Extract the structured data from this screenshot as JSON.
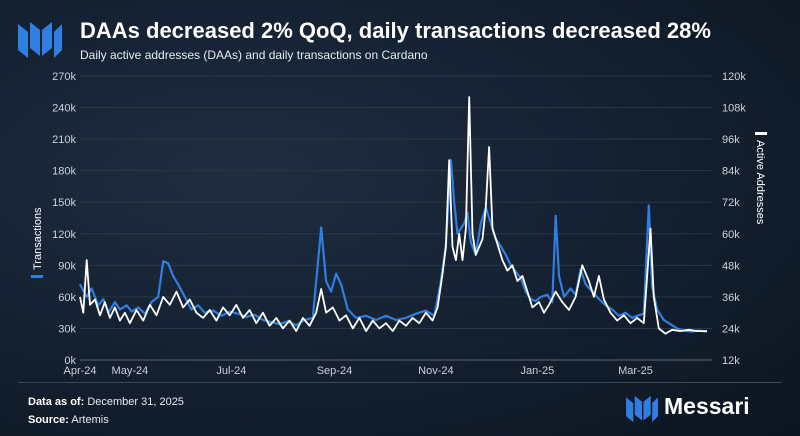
{
  "header": {
    "title": "DAAs decreased 2% QoQ, daily transactions decreased 28%",
    "subtitle": "Daily active addresses (DAAs) and daily transactions on Cardano"
  },
  "footer": {
    "data_as_of_label": "Data as of:",
    "data_as_of_value": "December 31, 2025",
    "source_label": "Source:",
    "source_value": "Artemis"
  },
  "brand": {
    "name": "Messari",
    "icon": "messari-logo-icon"
  },
  "colors": {
    "transactions": "#2f7ee0",
    "active_addresses": "#ffffff",
    "grid": "#2a3646",
    "background": "#152233"
  },
  "chart_data": {
    "type": "line",
    "grid": true,
    "x_ticks": [
      "Apr-24",
      "May-24",
      "Jul-24",
      "Sep-24",
      "Nov-24",
      "Jan-25",
      "Mar-25"
    ],
    "x_tick_dates": [
      "2024-04-01",
      "2024-05-01",
      "2024-07-01",
      "2024-09-01",
      "2024-11-01",
      "2025-01-01",
      "2025-03-01"
    ],
    "y_left": {
      "label": "Transactions",
      "ticks": [
        "0k",
        "30k",
        "60k",
        "90k",
        "120k",
        "150k",
        "180k",
        "210k",
        "240k",
        "270k"
      ],
      "lim": [
        0,
        270000
      ]
    },
    "y_right": {
      "label": "Active Addresses",
      "ticks": [
        "12k",
        "24k",
        "36k",
        "48k",
        "60k",
        "72k",
        "84k",
        "96k",
        "108k",
        "120k"
      ],
      "lim": [
        12000,
        120000
      ]
    },
    "series": [
      {
        "name": "Transactions",
        "axis": "left",
        "color": "#2f7ee0",
        "points": [
          [
            "2024-04-01",
            72000
          ],
          [
            "2024-04-05",
            60000
          ],
          [
            "2024-04-08",
            68000
          ],
          [
            "2024-04-12",
            52000
          ],
          [
            "2024-04-15",
            58000
          ],
          [
            "2024-04-18",
            45000
          ],
          [
            "2024-04-22",
            55000
          ],
          [
            "2024-04-25",
            48000
          ],
          [
            "2024-04-29",
            52000
          ],
          [
            "2024-05-02",
            46000
          ],
          [
            "2024-05-06",
            50000
          ],
          [
            "2024-05-10",
            44000
          ],
          [
            "2024-05-14",
            55000
          ],
          [
            "2024-05-18",
            60000
          ],
          [
            "2024-05-21",
            94000
          ],
          [
            "2024-05-24",
            92000
          ],
          [
            "2024-05-27",
            80000
          ],
          [
            "2024-05-30",
            72000
          ],
          [
            "2024-06-03",
            60000
          ],
          [
            "2024-06-07",
            48000
          ],
          [
            "2024-06-11",
            52000
          ],
          [
            "2024-06-15",
            45000
          ],
          [
            "2024-06-20",
            47000
          ],
          [
            "2024-06-25",
            42000
          ],
          [
            "2024-06-30",
            46000
          ],
          [
            "2024-07-05",
            44000
          ],
          [
            "2024-07-10",
            41000
          ],
          [
            "2024-07-15",
            43000
          ],
          [
            "2024-07-20",
            38000
          ],
          [
            "2024-07-25",
            36000
          ],
          [
            "2024-07-30",
            34000
          ],
          [
            "2024-08-04",
            37000
          ],
          [
            "2024-08-09",
            33000
          ],
          [
            "2024-08-14",
            38000
          ],
          [
            "2024-08-19",
            40000
          ],
          [
            "2024-08-24",
            126000
          ],
          [
            "2024-08-27",
            75000
          ],
          [
            "2024-08-30",
            65000
          ],
          [
            "2024-09-02",
            82000
          ],
          [
            "2024-09-05",
            72000
          ],
          [
            "2024-09-09",
            48000
          ],
          [
            "2024-09-14",
            40000
          ],
          [
            "2024-09-20",
            42000
          ],
          [
            "2024-09-26",
            38000
          ],
          [
            "2024-10-02",
            42000
          ],
          [
            "2024-10-08",
            38000
          ],
          [
            "2024-10-14",
            40000
          ],
          [
            "2024-10-20",
            44000
          ],
          [
            "2024-10-26",
            47000
          ],
          [
            "2024-10-31",
            42000
          ],
          [
            "2024-11-04",
            75000
          ],
          [
            "2024-11-07",
            110000
          ],
          [
            "2024-11-10",
            190000
          ],
          [
            "2024-11-12",
            150000
          ],
          [
            "2024-11-14",
            120000
          ],
          [
            "2024-11-16",
            125000
          ],
          [
            "2024-11-18",
            130000
          ],
          [
            "2024-11-20",
            140000
          ],
          [
            "2024-11-22",
            112000
          ],
          [
            "2024-11-25",
            100000
          ],
          [
            "2024-11-28",
            130000
          ],
          [
            "2024-12-01",
            145000
          ],
          [
            "2024-12-04",
            130000
          ],
          [
            "2024-12-07",
            115000
          ],
          [
            "2024-12-10",
            108000
          ],
          [
            "2024-12-13",
            100000
          ],
          [
            "2024-12-16",
            90000
          ],
          [
            "2024-12-19",
            84000
          ],
          [
            "2024-12-22",
            78000
          ],
          [
            "2024-12-25",
            65000
          ],
          [
            "2024-12-28",
            58000
          ],
          [
            "2024-12-31",
            56000
          ],
          [
            "2025-01-03",
            60000
          ],
          [
            "2025-01-07",
            62000
          ],
          [
            "2025-01-10",
            55000
          ],
          [
            "2025-01-12",
            137000
          ],
          [
            "2025-01-14",
            80000
          ],
          [
            "2025-01-17",
            60000
          ],
          [
            "2025-01-21",
            68000
          ],
          [
            "2025-01-24",
            62000
          ],
          [
            "2025-01-27",
            86000
          ],
          [
            "2025-01-30",
            72000
          ],
          [
            "2025-02-03",
            65000
          ],
          [
            "2025-02-07",
            58000
          ],
          [
            "2025-02-11",
            52000
          ],
          [
            "2025-02-15",
            48000
          ],
          [
            "2025-02-19",
            42000
          ],
          [
            "2025-02-23",
            45000
          ],
          [
            "2025-02-27",
            40000
          ],
          [
            "2025-03-02",
            42000
          ],
          [
            "2025-03-06",
            44000
          ],
          [
            "2025-03-09",
            147000
          ],
          [
            "2025-03-11",
            70000
          ],
          [
            "2025-03-14",
            48000
          ],
          [
            "2025-03-18",
            38000
          ],
          [
            "2025-03-22",
            34000
          ],
          [
            "2025-03-26",
            30000
          ],
          [
            "2025-03-30",
            28000
          ],
          [
            "2025-04-03",
            27000
          ],
          [
            "2025-04-08",
            28000
          ],
          [
            "2025-04-13",
            27000
          ]
        ]
      },
      {
        "name": "Active Addresses",
        "axis": "right",
        "color": "#ffffff",
        "points": [
          [
            "2024-04-01",
            36000
          ],
          [
            "2024-04-03",
            30000
          ],
          [
            "2024-04-05",
            50000
          ],
          [
            "2024-04-07",
            33000
          ],
          [
            "2024-04-10",
            35000
          ],
          [
            "2024-04-13",
            29000
          ],
          [
            "2024-04-16",
            34000
          ],
          [
            "2024-04-19",
            28000
          ],
          [
            "2024-04-22",
            32000
          ],
          [
            "2024-04-25",
            27000
          ],
          [
            "2024-04-28",
            30000
          ],
          [
            "2024-05-01",
            26000
          ],
          [
            "2024-05-05",
            31000
          ],
          [
            "2024-05-09",
            27000
          ],
          [
            "2024-05-13",
            33000
          ],
          [
            "2024-05-17",
            29000
          ],
          [
            "2024-05-21",
            36000
          ],
          [
            "2024-05-25",
            33000
          ],
          [
            "2024-05-29",
            38000
          ],
          [
            "2024-06-02",
            32000
          ],
          [
            "2024-06-06",
            35000
          ],
          [
            "2024-06-10",
            30000
          ],
          [
            "2024-06-14",
            28000
          ],
          [
            "2024-06-18",
            31000
          ],
          [
            "2024-06-22",
            27000
          ],
          [
            "2024-06-26",
            32000
          ],
          [
            "2024-06-30",
            29000
          ],
          [
            "2024-07-04",
            33000
          ],
          [
            "2024-07-08",
            28000
          ],
          [
            "2024-07-12",
            31000
          ],
          [
            "2024-07-16",
            26000
          ],
          [
            "2024-07-20",
            30000
          ],
          [
            "2024-07-24",
            25000
          ],
          [
            "2024-07-28",
            28000
          ],
          [
            "2024-08-01",
            24000
          ],
          [
            "2024-08-05",
            27000
          ],
          [
            "2024-08-09",
            23000
          ],
          [
            "2024-08-13",
            28000
          ],
          [
            "2024-08-17",
            25000
          ],
          [
            "2024-08-21",
            30000
          ],
          [
            "2024-08-24",
            39000
          ],
          [
            "2024-08-27",
            30000
          ],
          [
            "2024-08-31",
            32000
          ],
          [
            "2024-09-04",
            27000
          ],
          [
            "2024-09-08",
            29000
          ],
          [
            "2024-09-12",
            24000
          ],
          [
            "2024-09-16",
            28000
          ],
          [
            "2024-09-20",
            23000
          ],
          [
            "2024-09-24",
            27000
          ],
          [
            "2024-09-28",
            24000
          ],
          [
            "2024-10-02",
            26000
          ],
          [
            "2024-10-06",
            23000
          ],
          [
            "2024-10-10",
            27000
          ],
          [
            "2024-10-14",
            25000
          ],
          [
            "2024-10-18",
            28000
          ],
          [
            "2024-10-22",
            26000
          ],
          [
            "2024-10-26",
            30000
          ],
          [
            "2024-10-30",
            27000
          ],
          [
            "2024-11-02",
            32000
          ],
          [
            "2024-11-05",
            45000
          ],
          [
            "2024-11-07",
            55000
          ],
          [
            "2024-11-09",
            88000
          ],
          [
            "2024-11-11",
            55000
          ],
          [
            "2024-11-13",
            50000
          ],
          [
            "2024-11-15",
            60000
          ],
          [
            "2024-11-17",
            50000
          ],
          [
            "2024-11-19",
            62000
          ],
          [
            "2024-11-21",
            112000
          ],
          [
            "2024-11-23",
            60000
          ],
          [
            "2024-11-25",
            52000
          ],
          [
            "2024-11-27",
            55000
          ],
          [
            "2024-11-29",
            58000
          ],
          [
            "2024-12-01",
            70000
          ],
          [
            "2024-12-03",
            93000
          ],
          [
            "2024-12-05",
            62000
          ],
          [
            "2024-12-08",
            56000
          ],
          [
            "2024-12-11",
            50000
          ],
          [
            "2024-12-14",
            46000
          ],
          [
            "2024-12-17",
            48000
          ],
          [
            "2024-12-20",
            42000
          ],
          [
            "2024-12-23",
            44000
          ],
          [
            "2024-12-26",
            38000
          ],
          [
            "2024-12-29",
            32000
          ],
          [
            "2025-01-02",
            34000
          ],
          [
            "2025-01-05",
            30000
          ],
          [
            "2025-01-08",
            33000
          ],
          [
            "2025-01-12",
            38000
          ],
          [
            "2025-01-16",
            34000
          ],
          [
            "2025-01-20",
            31000
          ],
          [
            "2025-01-24",
            36000
          ],
          [
            "2025-01-28",
            48000
          ],
          [
            "2025-02-01",
            42000
          ],
          [
            "2025-02-04",
            36000
          ],
          [
            "2025-02-07",
            44000
          ],
          [
            "2025-02-10",
            35000
          ],
          [
            "2025-02-14",
            30000
          ],
          [
            "2025-02-18",
            27000
          ],
          [
            "2025-02-22",
            29000
          ],
          [
            "2025-02-26",
            26000
          ],
          [
            "2025-03-02",
            28000
          ],
          [
            "2025-03-06",
            26000
          ],
          [
            "2025-03-10",
            62000
          ],
          [
            "2025-03-12",
            36000
          ],
          [
            "2025-03-15",
            24000
          ],
          [
            "2025-03-19",
            22000
          ],
          [
            "2025-03-23",
            23500
          ],
          [
            "2025-03-28",
            23000
          ],
          [
            "2025-04-02",
            23500
          ],
          [
            "2025-04-07",
            23000
          ],
          [
            "2025-04-13",
            23000
          ]
        ]
      }
    ]
  }
}
